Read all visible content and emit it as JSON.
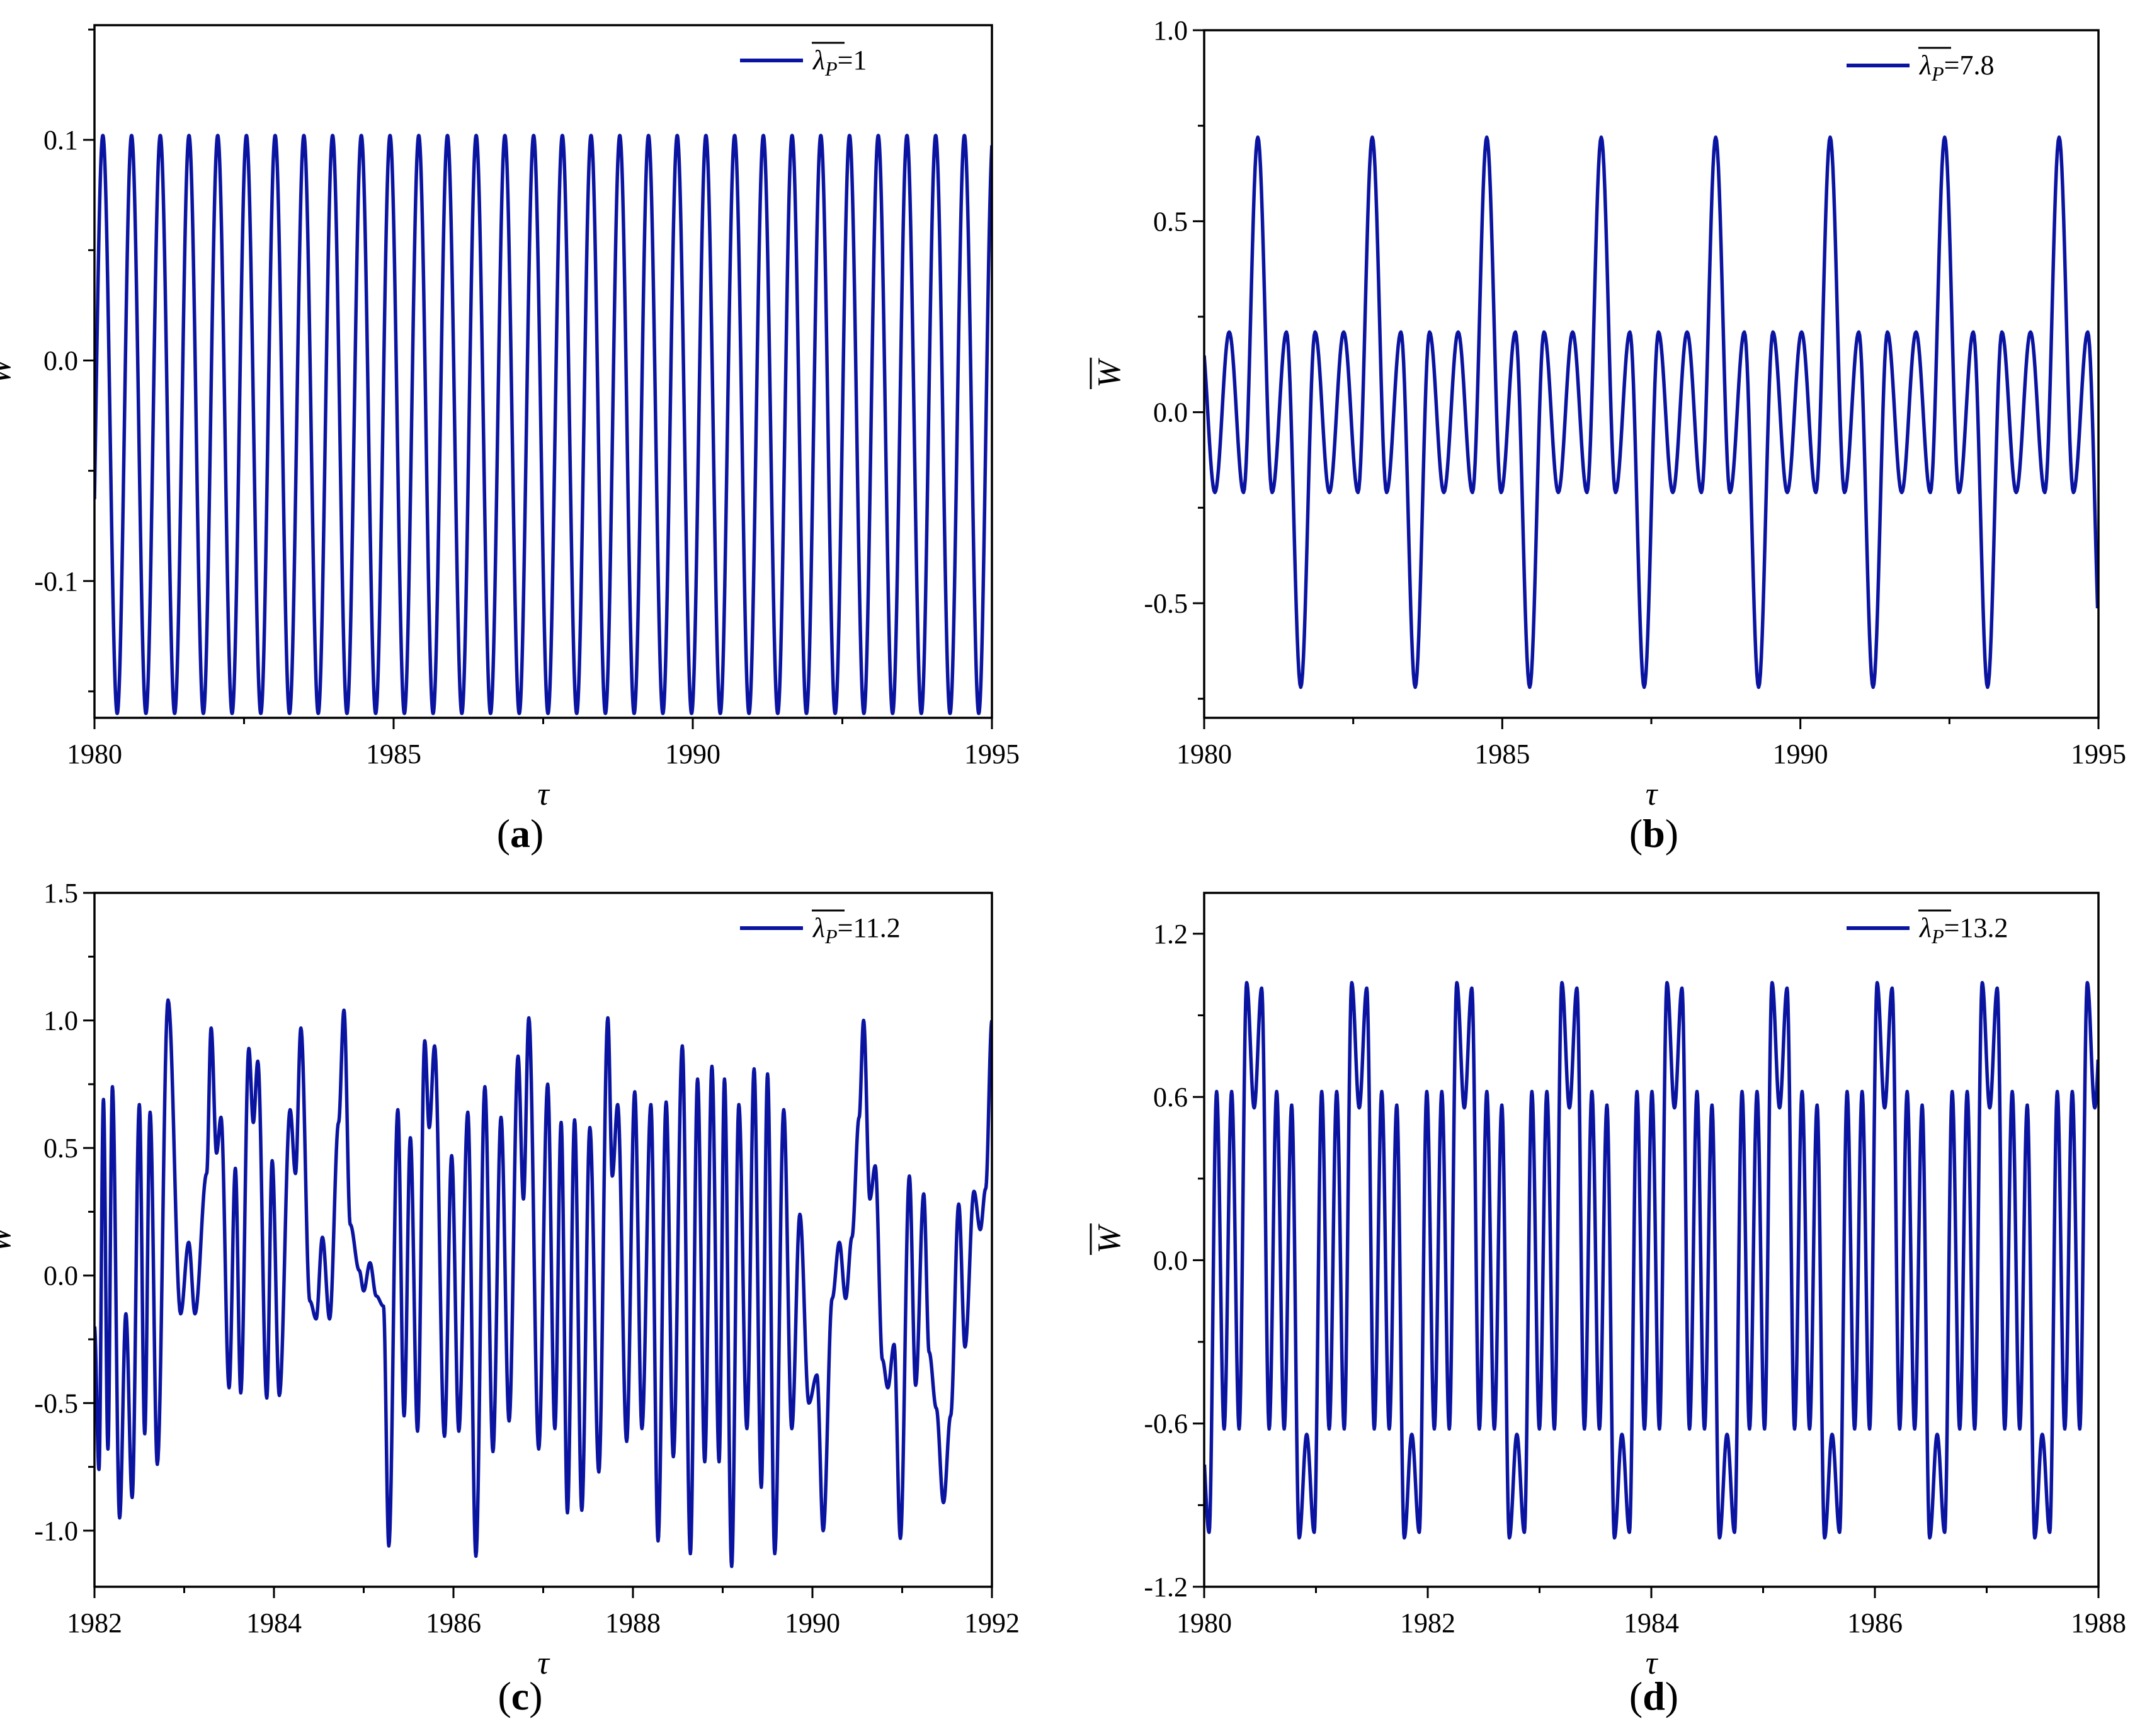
{
  "figure": {
    "series_color": "#0a14a0"
  },
  "chart_data": [
    {
      "id": "a",
      "type": "line",
      "panel_label": "a",
      "xlabel": "τ",
      "ylabel": "W",
      "xlim": [
        1980,
        1995
      ],
      "ylim": [
        -0.162,
        0.152
      ],
      "xticks": [
        1980,
        1985,
        1990,
        1995
      ],
      "xtick_labels": [
        "1980",
        "1985",
        "1990",
        "1995"
      ],
      "yticks": [
        -0.1,
        0.0,
        0.1
      ],
      "ytick_labels": [
        "-0.1",
        "0.0",
        "0.1"
      ],
      "legend": {
        "symbol": "λ",
        "subscript": "P",
        "value": "1"
      },
      "series": [
        {
          "name": "λP=1",
          "model": "periodic",
          "period": 0.48,
          "phase": 1980.14,
          "max": 0.102,
          "min": -0.16,
          "sharpness": 1.0
        }
      ]
    },
    {
      "id": "b",
      "type": "line",
      "panel_label": "b",
      "xlabel": "τ",
      "ylabel": "W",
      "xlim": [
        1980,
        1995
      ],
      "ylim": [
        -0.8,
        1.0
      ],
      "xticks": [
        1980,
        1985,
        1990,
        1995
      ],
      "xtick_labels": [
        "1980",
        "1985",
        "1990",
        "1995"
      ],
      "yticks": [
        -0.5,
        0.0,
        0.5,
        1.0
      ],
      "ytick_labels": [
        "-0.5",
        "0.0",
        "0.5",
        "1.0"
      ],
      "legend": {
        "symbol": "λ",
        "subscript": "P",
        "value": "7.8"
      },
      "series": [
        {
          "name": "λP=7.8",
          "model": "two-level",
          "period": 1.92,
          "phase": 1980.9,
          "big_max": 0.72,
          "big_min": -0.72,
          "small_max": 0.21,
          "small_min": -0.21
        }
      ]
    },
    {
      "id": "c",
      "type": "line",
      "panel_label": "c",
      "xlabel": "τ",
      "ylabel": "W",
      "xlim": [
        1982,
        1992
      ],
      "ylim": [
        -1.22,
        1.5
      ],
      "xticks": [
        1982,
        1984,
        1986,
        1988,
        1990,
        1992
      ],
      "xtick_labels": [
        "1982",
        "1984",
        "1986",
        "1988",
        "1990",
        "1992"
      ],
      "yticks": [
        -1.0,
        -0.5,
        0.0,
        0.5,
        1.0,
        1.5
      ],
      "ytick_labels": [
        "-1.0",
        "-0.5",
        "0.0",
        "0.5",
        "1.0",
        "1.5"
      ],
      "legend": {
        "symbol": "λ",
        "subscript": "P",
        "value": "11.2"
      },
      "series": [
        {
          "name": "λP=11.2",
          "model": "extrema",
          "extrema": [
            [
              1982.0,
              -0.2
            ],
            [
              1982.05,
              -0.76
            ],
            [
              1982.1,
              0.69
            ],
            [
              1982.15,
              -0.68
            ],
            [
              1982.2,
              0.74
            ],
            [
              1982.28,
              -0.95
            ],
            [
              1982.35,
              -0.15
            ],
            [
              1982.42,
              -0.87
            ],
            [
              1982.5,
              0.67
            ],
            [
              1982.56,
              -0.62
            ],
            [
              1982.62,
              0.64
            ],
            [
              1982.7,
              -0.74
            ],
            [
              1982.82,
              1.08
            ],
            [
              1982.96,
              -0.15
            ],
            [
              1983.05,
              0.13
            ],
            [
              1983.12,
              -0.15
            ],
            [
              1983.25,
              0.4
            ],
            [
              1983.3,
              0.97
            ],
            [
              1983.36,
              0.48
            ],
            [
              1983.41,
              0.62
            ],
            [
              1983.5,
              -0.44
            ],
            [
              1983.57,
              0.42
            ],
            [
              1983.63,
              -0.46
            ],
            [
              1983.72,
              0.89
            ],
            [
              1983.77,
              0.6
            ],
            [
              1983.82,
              0.84
            ],
            [
              1983.92,
              -0.48
            ],
            [
              1983.98,
              0.45
            ],
            [
              1984.06,
              -0.47
            ],
            [
              1984.18,
              0.65
            ],
            [
              1984.24,
              0.4
            ],
            [
              1984.3,
              0.97
            ],
            [
              1984.4,
              -0.1
            ],
            [
              1984.47,
              -0.17
            ],
            [
              1984.54,
              0.15
            ],
            [
              1984.62,
              -0.17
            ],
            [
              1984.72,
              0.6
            ],
            [
              1984.78,
              1.04
            ],
            [
              1984.85,
              0.2
            ],
            [
              1984.95,
              0.02
            ],
            [
              1985.0,
              -0.06
            ],
            [
              1985.07,
              0.05
            ],
            [
              1985.14,
              -0.08
            ],
            [
              1985.22,
              -0.12
            ],
            [
              1985.28,
              -1.06
            ],
            [
              1985.38,
              0.65
            ],
            [
              1985.45,
              -0.55
            ],
            [
              1985.52,
              0.54
            ],
            [
              1985.6,
              -0.61
            ],
            [
              1985.68,
              0.92
            ],
            [
              1985.73,
              0.58
            ],
            [
              1985.79,
              0.9
            ],
            [
              1985.9,
              -0.63
            ],
            [
              1985.98,
              0.47
            ],
            [
              1986.06,
              -0.61
            ],
            [
              1986.16,
              0.64
            ],
            [
              1986.25,
              -1.1
            ],
            [
              1986.35,
              0.74
            ],
            [
              1986.44,
              -0.69
            ],
            [
              1986.53,
              0.62
            ],
            [
              1986.62,
              -0.57
            ],
            [
              1986.72,
              0.86
            ],
            [
              1986.78,
              0.3
            ],
            [
              1986.84,
              1.01
            ],
            [
              1986.95,
              -0.68
            ],
            [
              1987.05,
              0.75
            ],
            [
              1987.13,
              -0.6
            ],
            [
              1987.2,
              0.6
            ],
            [
              1987.27,
              -0.93
            ],
            [
              1987.35,
              0.61
            ],
            [
              1987.43,
              -0.92
            ],
            [
              1987.52,
              0.58
            ],
            [
              1987.62,
              -0.77
            ],
            [
              1987.72,
              1.01
            ],
            [
              1987.77,
              0.39
            ],
            [
              1987.83,
              0.67
            ],
            [
              1987.93,
              -0.65
            ],
            [
              1988.02,
              0.72
            ],
            [
              1988.1,
              -0.6
            ],
            [
              1988.2,
              0.67
            ],
            [
              1988.28,
              -1.04
            ],
            [
              1988.37,
              0.68
            ],
            [
              1988.45,
              -0.71
            ],
            [
              1988.55,
              0.9
            ],
            [
              1988.64,
              -1.09
            ],
            [
              1988.72,
              0.77
            ],
            [
              1988.8,
              -0.73
            ],
            [
              1988.88,
              0.82
            ],
            [
              1988.96,
              -0.73
            ],
            [
              1989.02,
              0.77
            ],
            [
              1989.1,
              -1.14
            ],
            [
              1989.18,
              0.67
            ],
            [
              1989.27,
              -0.6
            ],
            [
              1989.35,
              0.81
            ],
            [
              1989.43,
              -0.83
            ],
            [
              1989.5,
              0.79
            ],
            [
              1989.58,
              -1.09
            ],
            [
              1989.68,
              0.65
            ],
            [
              1989.77,
              -0.6
            ],
            [
              1989.86,
              0.24
            ],
            [
              1989.96,
              -0.5
            ],
            [
              1990.05,
              -0.39
            ],
            [
              1990.12,
              -1.0
            ],
            [
              1990.22,
              -0.09
            ],
            [
              1990.3,
              0.13
            ],
            [
              1990.37,
              -0.09
            ],
            [
              1990.44,
              0.15
            ],
            [
              1990.52,
              0.62
            ],
            [
              1990.57,
              1.0
            ],
            [
              1990.64,
              0.3
            ],
            [
              1990.7,
              0.43
            ],
            [
              1990.78,
              -0.33
            ],
            [
              1990.84,
              -0.44
            ],
            [
              1990.91,
              -0.27
            ],
            [
              1990.98,
              -1.03
            ],
            [
              1991.08,
              0.39
            ],
            [
              1991.15,
              -0.43
            ],
            [
              1991.24,
              0.32
            ],
            [
              1991.3,
              -0.3
            ],
            [
              1991.38,
              -0.52
            ],
            [
              1991.46,
              -0.89
            ],
            [
              1991.54,
              -0.55
            ],
            [
              1991.63,
              0.28
            ],
            [
              1991.7,
              -0.28
            ],
            [
              1991.8,
              0.33
            ],
            [
              1991.87,
              0.18
            ],
            [
              1991.93,
              0.34
            ],
            [
              1992.0,
              1.0
            ]
          ]
        }
      ]
    },
    {
      "id": "d",
      "type": "line",
      "panel_label": "d",
      "xlabel": "τ",
      "ylabel": "W",
      "xlim": [
        1980,
        1988
      ],
      "ylim": [
        -1.2,
        1.35
      ],
      "xticks": [
        1980,
        1982,
        1984,
        1986,
        1988
      ],
      "xtick_labels": [
        "1980",
        "1982",
        "1984",
        "1986",
        "1988"
      ],
      "yticks": [
        -1.2,
        -0.6,
        0.0,
        0.6,
        1.2
      ],
      "ytick_labels": [
        "-1.2",
        "-0.6",
        "0.0",
        "0.6",
        "1.2"
      ],
      "legend": {
        "symbol": "λ",
        "subscript": "P",
        "value": "13.2"
      },
      "series": [
        {
          "name": "λP=13.2",
          "model": "three-level",
          "period": 0.94,
          "phase": 1980.38,
          "peak_hi": 1.02,
          "peak_lo": 0.62,
          "trough_lo": -1.02,
          "trough_hi": -0.62
        }
      ]
    }
  ]
}
